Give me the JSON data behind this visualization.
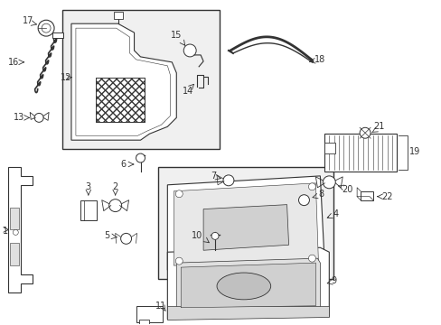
{
  "bg_color": "#ffffff",
  "line_color": "#333333",
  "fig_width": 4.89,
  "fig_height": 3.6,
  "dpi": 100,
  "font_size": 7.0
}
